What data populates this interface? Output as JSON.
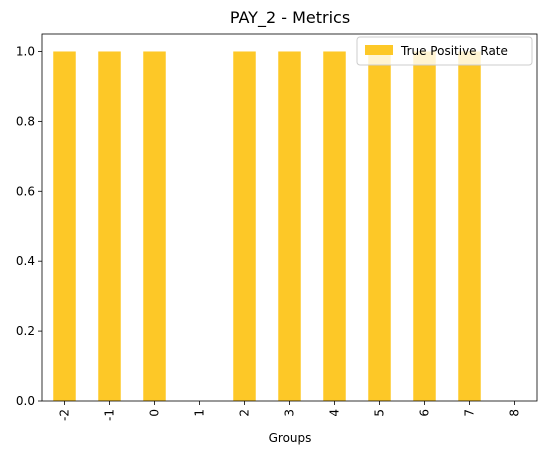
{
  "chart_data": {
    "type": "bar",
    "title": "PAY_2 - Metrics",
    "xlabel": "Groups",
    "ylabel": "",
    "categories": [
      "-2",
      "-1",
      "0",
      "1",
      "2",
      "3",
      "4",
      "5",
      "6",
      "7",
      "8"
    ],
    "series": [
      {
        "name": "True Positive Rate",
        "values": [
          1.0,
          1.0,
          1.0,
          0,
          1.0,
          1.0,
          1.0,
          1.0,
          1.0,
          1.0,
          0
        ],
        "color": "#fdc827"
      }
    ],
    "ylim": [
      0,
      1.05
    ],
    "yticks": [
      "0.0",
      "0.2",
      "0.4",
      "0.6",
      "0.8",
      "1.0"
    ],
    "ytick_values": [
      0,
      0.2,
      0.4,
      0.6,
      0.8,
      1.0
    ],
    "grid": false,
    "legend_position": "top-right",
    "x_tick_rotation": "vertical"
  }
}
